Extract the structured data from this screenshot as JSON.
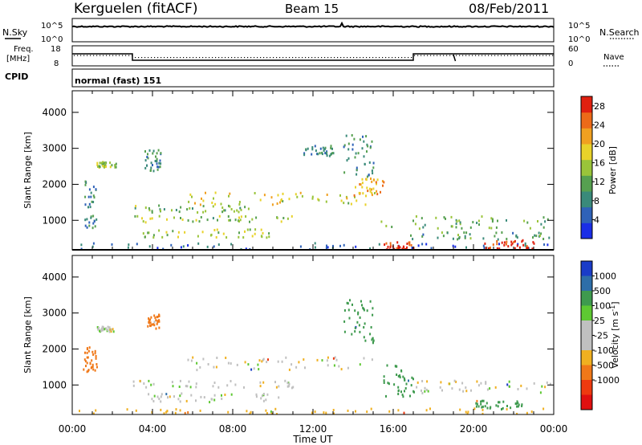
{
  "header": {
    "station": "Kerguelen (fitACF)",
    "beam": "Beam 15",
    "date": "08/Feb/2011"
  },
  "noise_panel": {
    "left_label": "N.Sky",
    "right_label": "N.Search",
    "left_ticks": [
      "10^5",
      "10^0"
    ],
    "right_ticks": [
      "10^5",
      "10^0"
    ]
  },
  "freq_panel": {
    "left_label_1": "Freq.",
    "left_label_2": "[MHz]",
    "left_ticks": [
      "18",
      "8"
    ],
    "right_label": "Nave",
    "right_ticks": [
      "60",
      "0"
    ]
  },
  "cpid": {
    "label": "CPID",
    "value": "normal (fast) 151"
  },
  "chart_data": [
    {
      "type": "heatmap",
      "name": "power",
      "ylabel": "Slant Range [km]",
      "ylim": [
        180,
        4600
      ],
      "yticks": [
        "1000",
        "2000",
        "3000",
        "4000"
      ],
      "xlim_hours": [
        0,
        24
      ],
      "colorbar": {
        "label": "Power [dB]",
        "ticks": [
          "4",
          "8",
          "12",
          "16",
          "20",
          "24",
          "28"
        ],
        "range": [
          0,
          30
        ],
        "colors": [
          "#1a2ee6",
          "#2f62b8",
          "#3a8a7a",
          "#56a050",
          "#9ac43a",
          "#e8d22a",
          "#f0a020",
          "#ec6a18",
          "#e02010"
        ]
      },
      "bands": [
        {
          "t0": 5.6,
          "t1": 15.4,
          "r0": 1450,
          "r1": 1800,
          "level": 18
        },
        {
          "t0": 3.0,
          "t1": 9.0,
          "r0": 1250,
          "r1": 1450,
          "level": 12
        },
        {
          "t0": 3.0,
          "t1": 11.0,
          "r0": 950,
          "r1": 1150,
          "level": 14
        },
        {
          "t0": 3.5,
          "t1": 10.5,
          "r0": 550,
          "r1": 800,
          "level": 16
        },
        {
          "t0": 14.0,
          "t1": 15.5,
          "r0": 1700,
          "r1": 2200,
          "level": 22
        },
        {
          "t0": 15.3,
          "t1": 24.0,
          "r0": 800,
          "r1": 1150,
          "level": 12
        },
        {
          "t0": 16.5,
          "t1": 24.0,
          "r0": 500,
          "r1": 700,
          "level": 10
        },
        {
          "t0": 0.6,
          "t1": 1.2,
          "r0": 800,
          "r1": 2200,
          "level": 8
        },
        {
          "t0": 13.5,
          "t1": 15.0,
          "r0": 2200,
          "r1": 3400,
          "level": 8
        },
        {
          "t0": 11.5,
          "t1": 13.0,
          "r0": 2800,
          "r1": 3100,
          "level": 8
        },
        {
          "t0": 1.2,
          "t1": 2.2,
          "r0": 2500,
          "r1": 2650,
          "level": 14
        },
        {
          "t0": 3.6,
          "t1": 4.4,
          "r0": 2400,
          "r1": 3000,
          "level": 8
        },
        {
          "t0": 0.0,
          "t1": 24.0,
          "r0": 220,
          "r1": 400,
          "level": 4
        },
        {
          "t0": 15.5,
          "t1": 17.0,
          "r0": 200,
          "r1": 420,
          "level": 30
        },
        {
          "t0": 20.5,
          "t1": 23.0,
          "r0": 220,
          "r1": 480,
          "level": 30
        }
      ]
    },
    {
      "type": "heatmap",
      "name": "velocity",
      "ylabel": "Slant Range [km]",
      "ylim": [
        180,
        4600
      ],
      "yticks": [
        "1000",
        "2000",
        "3000",
        "4000"
      ],
      "xlabel": "Time UT",
      "xticks": [
        "00:00",
        "04:00",
        "08:00",
        "12:00",
        "16:00",
        "20:00",
        "00:00"
      ],
      "xlim_hours": [
        0,
        24
      ],
      "colorbar": {
        "label": "Velocity [m s^-1]",
        "ticks": [
          "1000",
          "500",
          "100",
          "25",
          "-25",
          "-100",
          "-500",
          "-1000"
        ],
        "colors": [
          "#1a3cc8",
          "#2e6ea8",
          "#3e9a4e",
          "#5ec832",
          "#c0c0c0",
          "#c0c0c0",
          "#f0b020",
          "#f07818",
          "#ee3a10",
          "#e01010"
        ]
      },
      "bands": [
        {
          "t0": 5.6,
          "t1": 15.4,
          "r0": 1450,
          "r1": 1800,
          "vel": 0
        },
        {
          "t0": 3.0,
          "t1": 11.0,
          "r0": 950,
          "r1": 1150,
          "vel": 0
        },
        {
          "t0": 3.5,
          "t1": 10.5,
          "r0": 550,
          "r1": 800,
          "vel": 0
        },
        {
          "t0": 13.5,
          "t1": 15.0,
          "r0": 2200,
          "r1": 3400,
          "vel": 150
        },
        {
          "t0": 15.5,
          "t1": 17.0,
          "r0": 700,
          "r1": 1600,
          "vel": 150
        },
        {
          "t0": 17.0,
          "t1": 24.0,
          "r0": 800,
          "r1": 1150,
          "vel": 0
        },
        {
          "t0": 20.0,
          "t1": 22.5,
          "r0": 350,
          "r1": 600,
          "vel": 150
        },
        {
          "t0": 0.5,
          "t1": 1.2,
          "r0": 1400,
          "r1": 2100,
          "vel": -400
        },
        {
          "t0": 3.7,
          "t1": 4.3,
          "r0": 2600,
          "r1": 3000,
          "vel": -300
        },
        {
          "t0": 1.2,
          "t1": 2.2,
          "r0": 2500,
          "r1": 2650,
          "vel": 0
        },
        {
          "t0": 0.0,
          "t1": 24.0,
          "r0": 220,
          "r1": 380,
          "vel": -60
        }
      ]
    }
  ]
}
